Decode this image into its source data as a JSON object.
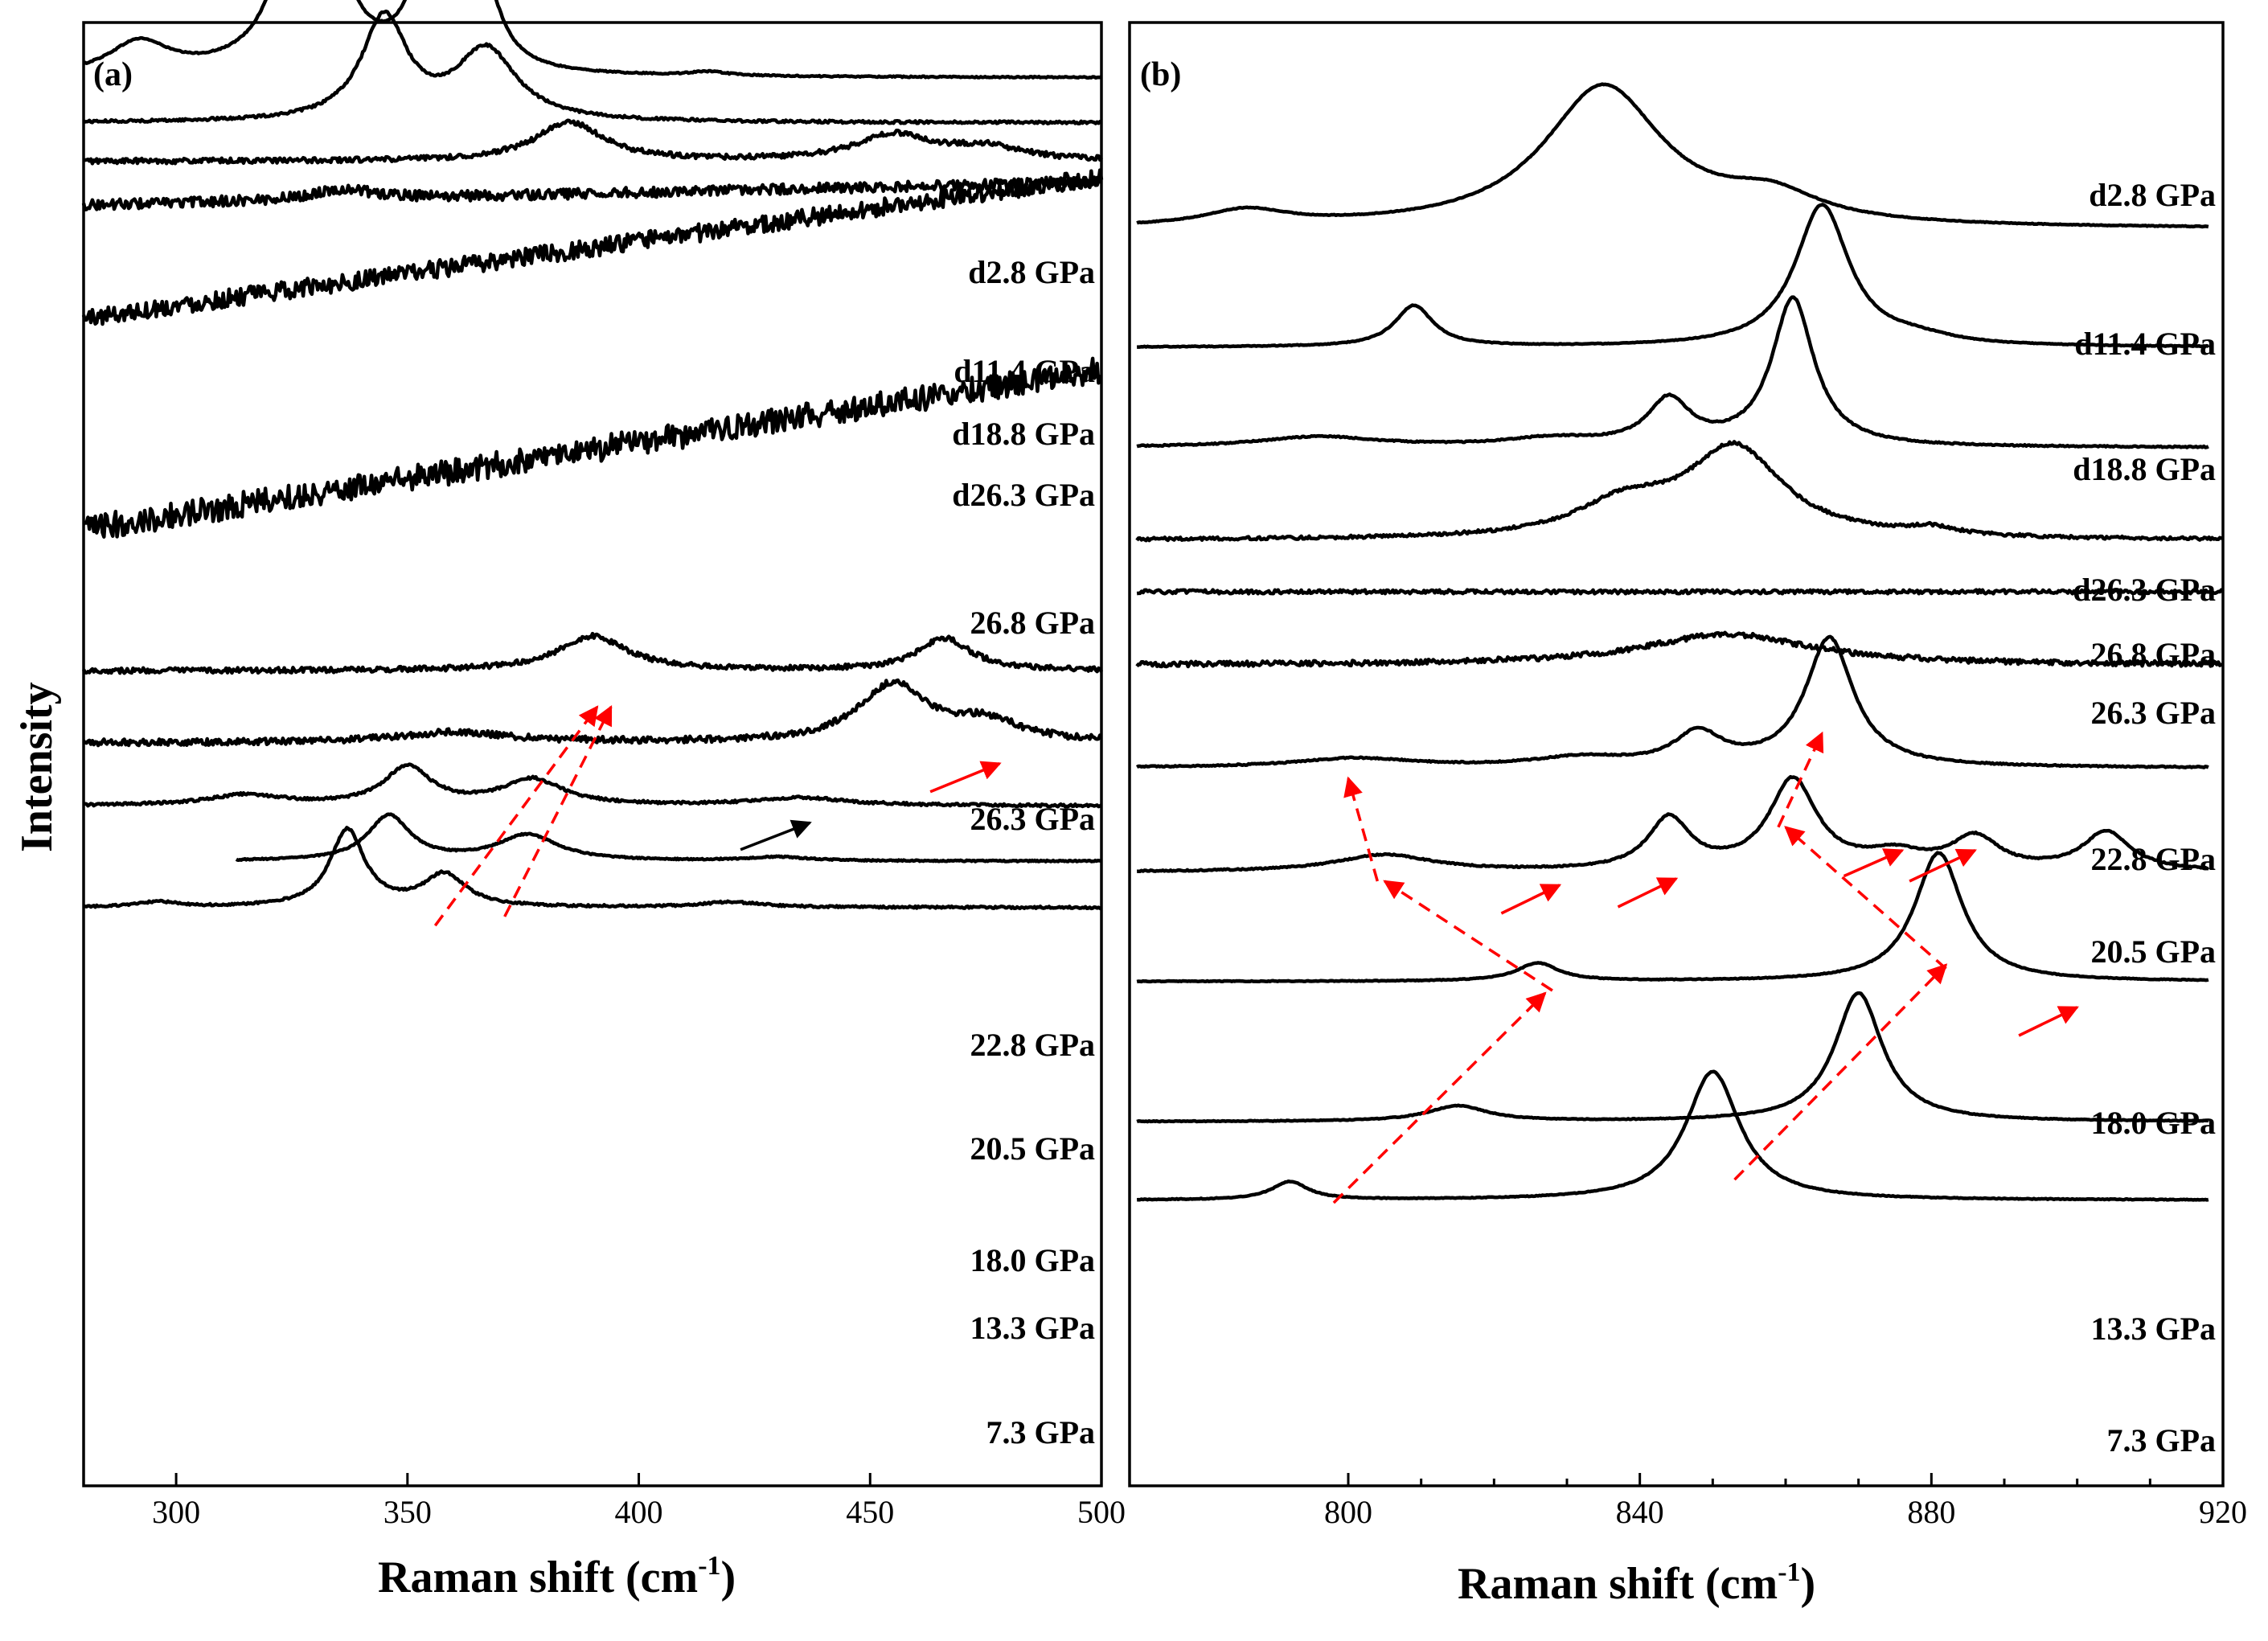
{
  "figure": {
    "y_axis_title": "Intensity",
    "x_axis_title": "Raman shift (cm",
    "x_axis_unit_sup": "-1",
    "x_axis_close": ")",
    "colors": {
      "line": "#000000",
      "arrow_red": "#ff0000",
      "arrow_black": "#000000"
    }
  },
  "chart_data": [
    {
      "type": "line",
      "panel": "(a)",
      "xlabel": "Raman shift (cm-1)",
      "ylabel": "Intensity",
      "xlim": [
        280,
        500
      ],
      "xticks": [
        300,
        350,
        400,
        450,
        500
      ],
      "xtick_labels": [
        "300",
        "350",
        "400",
        "450",
        "500"
      ],
      "series": [
        {
          "name": "d2.8 GPa",
          "x_start": 280,
          "x_end": 500,
          "baseline": 18.7,
          "slope": 0,
          "noise": 0.05,
          "peaks": [
            [
              292,
              2.5,
              8
            ],
            [
              329,
              23,
              5.5
            ],
            [
              354,
              8,
              4.5
            ],
            [
              366,
              7.5,
              4.5
            ],
            [
              415,
              0.3,
              5
            ]
          ]
        },
        {
          "name": "d11.4 GPa",
          "x_start": 280,
          "x_end": 500,
          "baseline": 15.2,
          "slope": 0,
          "noise": 0.1,
          "peaks": [
            [
              345,
              8,
              6
            ],
            [
              367,
              5.5,
              8
            ]
          ]
        },
        {
          "name": "d18.8 GPa",
          "x_start": 280,
          "x_end": 500,
          "baseline": 12.2,
          "slope": 0,
          "noise": 0.2,
          "peaks": [
            [
              385,
              3,
              9
            ],
            [
              455,
              2,
              10
            ],
            [
              475,
              1,
              10
            ]
          ]
        },
        {
          "name": "d26.3 GPa",
          "x_start": 280,
          "x_end": 500,
          "baseline": 8.8,
          "slope": 1.8,
          "noise": 0.4,
          "peaks": [
            [
              336,
              0.8,
              8
            ]
          ]
        },
        {
          "name": "26.8 GPa",
          "x_start": 280,
          "x_end": 500,
          "baseline": 0.0,
          "slope": 11,
          "noise": 0.7,
          "peaks": []
        },
        {
          "name": "26.3 GPa",
          "x_start": 280,
          "x_end": 500,
          "baseline": -16.4,
          "slope": 12.4,
          "noise": 1.0,
          "peaks": []
        },
        {
          "name": "22.8 GPa",
          "x_start": 280,
          "x_end": 500,
          "baseline": -27.4,
          "slope": 0,
          "noise": 0.2,
          "peaks": [
            [
              390,
              2.7,
              9
            ],
            [
              466,
              2.5,
              7
            ]
          ]
        },
        {
          "name": "20.5 GPa",
          "x_start": 280,
          "x_end": 500,
          "baseline": -33.0,
          "slope": 0,
          "noise": 0.25,
          "peaks": [
            [
              360,
              0.8,
              15
            ],
            [
              455,
              4.5,
              9
            ],
            [
              475,
              1.5,
              9
            ]
          ]
        },
        {
          "name": "18.0 GPa",
          "x_start": 280,
          "x_end": 500,
          "baseline": -37.9,
          "slope": 0,
          "noise": 0.1,
          "peaks": [
            [
              315,
              0.8,
              10
            ],
            [
              350,
              3,
              6
            ],
            [
              377,
              2,
              8
            ],
            [
              435,
              0.6,
              12
            ]
          ]
        },
        {
          "name": "13.3 GPa",
          "x_start": 313,
          "x_end": 500,
          "baseline": -42.2,
          "slope": 0,
          "noise": 0.05,
          "peaks": [
            [
              346,
              3.5,
              5.5
            ],
            [
              376,
              2,
              8
            ],
            [
              430,
              0.3,
              8
            ]
          ]
        },
        {
          "name": "7.3 GPa",
          "x_start": 280,
          "x_end": 500,
          "baseline": -45.8,
          "slope": 0,
          "noise": 0.08,
          "peaks": [
            [
              296,
              0.4,
              5
            ],
            [
              337,
              6,
              4.5
            ],
            [
              358,
              2.5,
              5.5
            ],
            [
              420,
              0.4,
              8
            ]
          ]
        }
      ],
      "annotations": [
        {
          "type": "dashed-arrow",
          "color": "#ff0000",
          "from": [
            356,
            -47.2
          ],
          "to": [
            391,
            -30.2
          ]
        },
        {
          "type": "dashed-arrow",
          "color": "#ff0000",
          "from": [
            371,
            -46.5
          ],
          "to": [
            394,
            -30.2
          ]
        },
        {
          "type": "solid-arrow",
          "color": "#ff0000",
          "from": [
            463,
            -36.8
          ],
          "to": [
            478,
            -34.6
          ]
        },
        {
          "type": "solid-arrow",
          "color": "#000000",
          "from": [
            422,
            -41.3
          ],
          "to": [
            437,
            -39.2
          ]
        }
      ]
    },
    {
      "type": "line",
      "panel": "(b)",
      "xlabel": "Raman shift (cm-1)",
      "ylabel": "Intensity",
      "xlim": [
        770,
        920
      ],
      "xticks": [
        800,
        840,
        880,
        920
      ],
      "minor_xticks": [
        810,
        820,
        830,
        850,
        860,
        870,
        890,
        900,
        910
      ],
      "xtick_labels": [
        "800",
        "840",
        "880",
        "920"
      ],
      "series": [
        {
          "name": "d2.8 GPa",
          "x_start": 771,
          "x_end": 918,
          "baseline": 35.7,
          "slope": 0,
          "noise": 0.03,
          "peaks": [
            [
              786,
              1.2,
              7
            ],
            [
              835,
              11,
              10
            ],
            [
              858,
              2,
              8
            ]
          ]
        },
        {
          "name": "d11.4 GPa",
          "x_start": 771,
          "x_end": 918,
          "baseline": 26.5,
          "slope": 0,
          "noise": 0.03,
          "peaks": [
            [
              809,
              3.2,
              3.2
            ],
            [
              865,
              11,
              4.5
            ],
            [
              878,
              0.5,
              6
            ]
          ]
        },
        {
          "name": "d18.8 GPa",
          "x_start": 771,
          "x_end": 918,
          "baseline": 18.7,
          "slope": 0,
          "noise": 0.05,
          "peaks": [
            [
              796,
              0.8,
              10
            ],
            [
              844,
              3.5,
              3.5
            ],
            [
              861,
              11.5,
              3.5
            ],
            [
              828,
              0.6,
              8
            ]
          ]
        },
        {
          "name": "d26.3 GPa",
          "x_start": 771,
          "x_end": 920,
          "baseline": 11.5,
          "slope": 0,
          "noise": 0.12,
          "peaks": [
            [
              853,
              7,
              8
            ],
            [
              838,
              2.5,
              8
            ],
            [
              880,
              0.6,
              4
            ]
          ]
        },
        {
          "name": "26.8 GPa",
          "x_start": 771,
          "x_end": 920,
          "baseline": 7.5,
          "slope": 0,
          "noise": 0.15,
          "peaks": []
        },
        {
          "name": "26.3 GPa",
          "x_start": 771,
          "x_end": 920,
          "baseline": 1.8,
          "slope": 0,
          "noise": 0.2,
          "peaks": [
            [
              852,
              2.4,
              14
            ]
          ]
        },
        {
          "name": "22.8 GPa",
          "x_start": 771,
          "x_end": 918,
          "baseline": -6.2,
          "slope": 0,
          "noise": 0.05,
          "peaks": [
            [
              801,
              0.7,
              10
            ],
            [
              832,
              0.7,
              8
            ],
            [
              848,
              2.5,
              4
            ],
            [
              866,
              10,
              4
            ]
          ]
        },
        {
          "name": "20.5 GPa",
          "x_start": 771,
          "x_end": 918,
          "baseline": -14.3,
          "slope": 0,
          "noise": 0.05,
          "peaks": [
            [
              805,
              1.3,
              8
            ],
            [
              844,
              4,
              3.5
            ],
            [
              861,
              7,
              4
            ],
            [
              875,
              1.2,
              5
            ],
            [
              886,
              2.5,
              4
            ],
            [
              904,
              3,
              4
            ]
          ]
        },
        {
          "name": "18.0 GPa",
          "x_start": 771,
          "x_end": 918,
          "baseline": -22.8,
          "slope": 0,
          "noise": 0.03,
          "peaks": [
            [
              826,
              1.4,
              3.5
            ],
            [
              881,
              10,
              4
            ]
          ]
        },
        {
          "name": "13.3 GPa",
          "x_start": 771,
          "x_end": 918,
          "baseline": -33.7,
          "slope": 0,
          "noise": 0.03,
          "peaks": [
            [
              815,
              1.2,
              5
            ],
            [
              870,
              10,
              4
            ]
          ]
        },
        {
          "name": "7.3 GPa",
          "x_start": 771,
          "x_end": 918,
          "baseline": -39.8,
          "slope": 0,
          "noise": 0.03,
          "peaks": [
            [
              792,
              1.4,
              3
            ],
            [
              850,
              10,
              4.5
            ]
          ]
        }
      ],
      "annotations": [
        {
          "type": "dashed-arrow",
          "color": "#ff0000",
          "from": [
            798,
            -40.0
          ],
          "to": [
            827,
            -23.7
          ]
        },
        {
          "type": "dashed-arrow",
          "color": "#ff0000",
          "from": [
            853,
            -38.2
          ],
          "to": [
            882,
            -21.5
          ]
        },
        {
          "type": "dashed-arrow",
          "color": "#ff0000",
          "from": [
            828,
            -23.5
          ],
          "to": [
            805,
            -15.0
          ]
        },
        {
          "type": "dashed-arrow",
          "color": "#ff0000",
          "from": [
            804,
            -15.0
          ],
          "to": [
            800,
            -7.0
          ]
        },
        {
          "type": "dashed-arrow",
          "color": "#ff0000",
          "from": [
            882,
            -21.8
          ],
          "to": [
            860,
            -10.8
          ]
        },
        {
          "type": "dashed-arrow",
          "color": "#ff0000",
          "from": [
            859,
            -10.8
          ],
          "to": [
            865,
            -3.5
          ]
        },
        {
          "type": "solid-arrow",
          "color": "#ff0000",
          "from": [
            821,
            -17.5
          ],
          "to": [
            829,
            -15.3
          ]
        },
        {
          "type": "solid-arrow",
          "color": "#ff0000",
          "from": [
            837,
            -17.0
          ],
          "to": [
            845,
            -14.8
          ]
        },
        {
          "type": "solid-arrow",
          "color": "#ff0000",
          "from": [
            868,
            -14.6
          ],
          "to": [
            876,
            -12.6
          ]
        },
        {
          "type": "solid-arrow",
          "color": "#ff0000",
          "from": [
            877,
            -15.0
          ],
          "to": [
            886,
            -12.6
          ]
        },
        {
          "type": "solid-arrow",
          "color": "#ff0000",
          "from": [
            892,
            -27.0
          ],
          "to": [
            900,
            -24.8
          ]
        }
      ]
    }
  ]
}
